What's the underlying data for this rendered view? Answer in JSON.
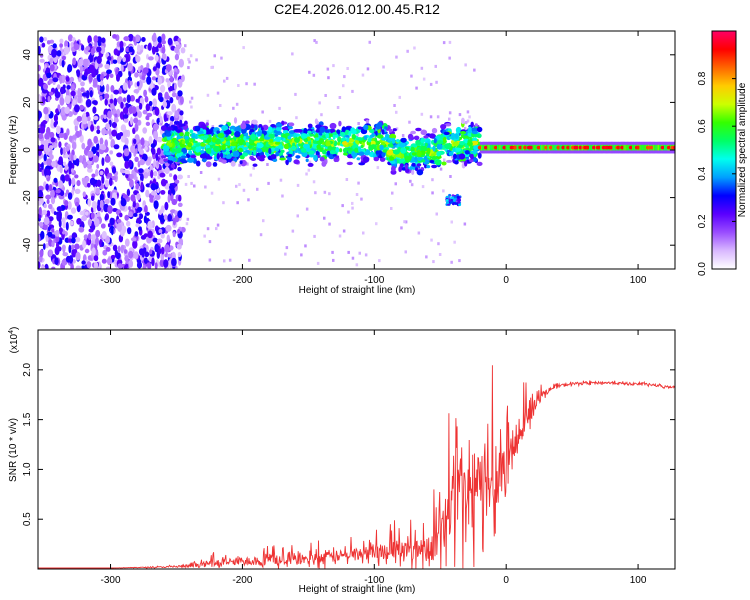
{
  "chart_data": [
    {
      "type": "heatmap",
      "title": "C2E4.2026.012.00.45.R12",
      "xlabel": "Height of straight line (km)",
      "ylabel": "Frequency (Hz)",
      "xlim": [
        -355,
        128
      ],
      "ylim": [
        -50,
        50
      ],
      "xticks": [
        -300,
        -200,
        -100,
        0,
        100
      ],
      "yticks": [
        -40,
        -20,
        0,
        20,
        40
      ],
      "colorbar": {
        "label": "Normalized spectral amplitude",
        "range": [
          0,
          1
        ],
        "ticks": [
          "0.0",
          "0.2",
          "0.4",
          "0.6",
          "0.8"
        ],
        "tick_values": [
          0.0,
          0.2,
          0.4,
          0.6,
          0.8
        ],
        "colors": [
          "#ffffff",
          "#d9b8ff",
          "#9a4dff",
          "#5a00ff",
          "#0000ff",
          "#00a0ff",
          "#00ffee",
          "#00ff66",
          "#33ff00",
          "#ccff00",
          "#ffcc00",
          "#ff6600",
          "#ff0000",
          "#ff0066"
        ]
      },
      "regions": [
        {
          "name": "noise",
          "x_range": [
            -355,
            -245
          ],
          "f_range": [
            -50,
            48
          ],
          "amplitude": 0.2
        },
        {
          "name": "signal-band",
          "x_range": [
            -260,
            -20
          ],
          "center_hz": 3,
          "width_hz": 10,
          "amplitude": 0.45
        },
        {
          "name": "secondary-feature",
          "x_range": [
            -45,
            -35
          ],
          "center_hz": -21,
          "width_hz": 4,
          "amplitude": 0.3
        },
        {
          "name": "carrier",
          "x_range": [
            -20,
            128
          ],
          "center_hz": 1,
          "width_hz": 2,
          "amplitude": 0.85
        }
      ]
    },
    {
      "type": "line",
      "xlabel": "Height of straight line (km)",
      "ylabel": "SNR (10 * v/v)",
      "scale_label": "(x10",
      "scale_exp": "4",
      "scale_close": ")",
      "xlim": [
        -355,
        128
      ],
      "ylim": [
        0,
        2.4
      ],
      "xticks": [
        -300,
        -200,
        -100,
        0,
        100
      ],
      "yticks": [
        0.5,
        1.0,
        1.5,
        2.0
      ],
      "ytick_labels": [
        "0.5",
        "1.0",
        "1.5",
        "2.0"
      ],
      "color": "#ee3333",
      "series": [
        {
          "name": "SNR",
          "x": [
            -355,
            -300,
            -260,
            -240,
            -220,
            -200,
            -180,
            -160,
            -140,
            -120,
            -100,
            -80,
            -60,
            -50,
            -45,
            -40,
            -30,
            -20,
            -10,
            0,
            5,
            10,
            15,
            20,
            25,
            30,
            40,
            50,
            60,
            70,
            80,
            90,
            100,
            110,
            120,
            128
          ],
          "y": [
            0.01,
            0.01,
            0.02,
            0.03,
            0.06,
            0.08,
            0.09,
            0.09,
            0.11,
            0.14,
            0.17,
            0.19,
            0.2,
            0.3,
            0.5,
            0.65,
            0.75,
            0.8,
            0.95,
            1.05,
            1.2,
            1.35,
            1.5,
            1.6,
            1.7,
            1.78,
            1.84,
            1.86,
            1.87,
            1.87,
            1.87,
            1.86,
            1.86,
            1.85,
            1.83,
            1.83
          ],
          "noise": [
            0,
            0,
            0.01,
            0.03,
            0.06,
            0.07,
            0.08,
            0.08,
            0.09,
            0.1,
            0.12,
            0.15,
            0.2,
            0.35,
            0.5,
            0.6,
            0.65,
            0.65,
            0.6,
            0.55,
            0.4,
            0.3,
            0.2,
            0.12,
            0.08,
            0.05,
            0.03,
            0.02,
            0.02,
            0.02,
            0.02,
            0.02,
            0.02,
            0.02,
            0.02,
            0.02
          ]
        }
      ]
    }
  ]
}
